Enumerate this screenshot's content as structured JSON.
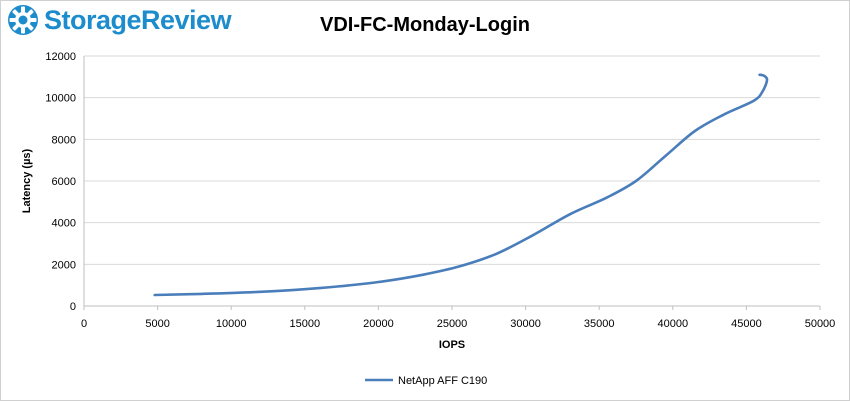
{
  "brand": {
    "name": "StorageReview",
    "logo_icon": "storagereview-gear-logo-icon",
    "color": "#1d8ccc"
  },
  "chart_data": {
    "type": "line",
    "title": "VDI-FC-Monday-Login",
    "xlabel": "IOPS",
    "ylabel": "Latency (µs)",
    "xlim": [
      0,
      50000
    ],
    "ylim": [
      0,
      12000
    ],
    "xticks": [
      0,
      5000,
      10000,
      15000,
      20000,
      25000,
      30000,
      35000,
      40000,
      45000,
      50000
    ],
    "yticks": [
      0,
      2000,
      4000,
      6000,
      8000,
      10000,
      12000
    ],
    "grid": "horizontal",
    "legend_position": "bottom",
    "series": [
      {
        "name": "NetApp AFF C190",
        "color": "#4a7ebb",
        "x": [
          4800,
          8000,
          12000,
          16000,
          20000,
          23000,
          25500,
          28000,
          30500,
          33000,
          35500,
          37500,
          39500,
          41500,
          43500,
          45500,
          46100,
          46400,
          46200,
          45900
        ],
        "y": [
          530,
          580,
          680,
          860,
          1150,
          1500,
          1900,
          2500,
          3400,
          4400,
          5200,
          6000,
          7200,
          8400,
          9200,
          9850,
          10300,
          10850,
          11050,
          11100
        ]
      }
    ]
  }
}
